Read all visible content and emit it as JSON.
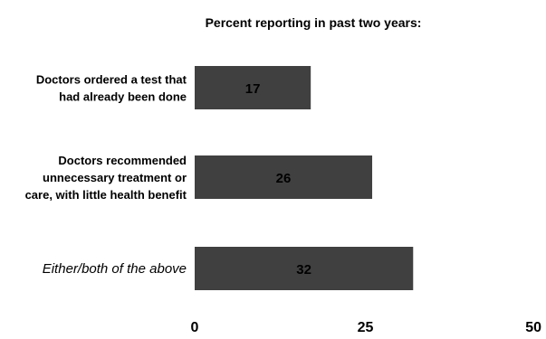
{
  "chart_data": {
    "type": "bar",
    "orientation": "horizontal",
    "title": "Percent reporting in past two years:",
    "categories": [
      {
        "lines": [
          "Doctors ordered a test that",
          "had already been done"
        ],
        "italic": false
      },
      {
        "lines": [
          "Doctors recommended",
          "unnecessary treatment or",
          "care, with little health benefit"
        ],
        "italic": false
      },
      {
        "lines": [
          "Either/both of the above"
        ],
        "italic": true
      }
    ],
    "values": [
      17,
      26,
      32
    ],
    "data_labels": [
      "17",
      "26",
      "32"
    ],
    "xlim": [
      0,
      50
    ],
    "xticks": [
      "0",
      "25",
      "50"
    ],
    "bar_color": "#404040",
    "grid": false,
    "legend": "none"
  }
}
